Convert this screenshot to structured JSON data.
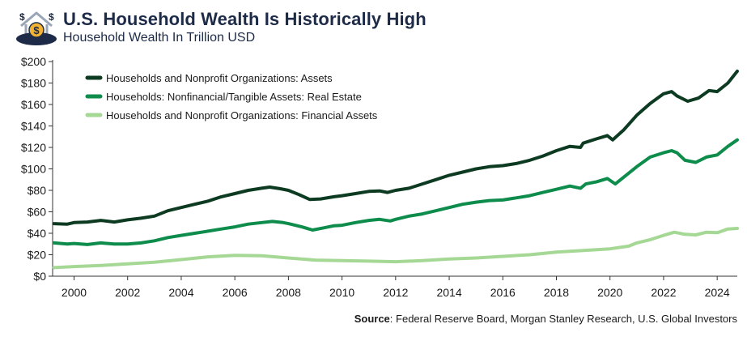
{
  "header": {
    "title": "U.S. Household Wealth Is Historically High",
    "subtitle": "Household Wealth In Trillion USD"
  },
  "logo": {
    "icon": "house-money-icon",
    "glyphs": [
      "$",
      "$",
      "$"
    ]
  },
  "source": {
    "label": "Source",
    "text": ": Federal Reserve Board, Morgan Stanley Research, U.S. Global Investors"
  },
  "chart_data": {
    "type": "line",
    "title": "U.S. Household Wealth Is Historically High",
    "subtitle": "Household Wealth In Trillion USD",
    "xlabel": "",
    "ylabel": "",
    "xlim": [
      1999.2,
      2024.75
    ],
    "ylim": [
      0,
      200
    ],
    "y_ticks": [
      0,
      20,
      40,
      60,
      80,
      100,
      120,
      140,
      160,
      180,
      200
    ],
    "y_tick_labels": [
      "$0",
      "$20",
      "$40",
      "$60",
      "$80",
      "$100",
      "$120",
      "$140",
      "$160",
      "$180",
      "$200"
    ],
    "x_ticks": [
      2000,
      2002,
      2004,
      2006,
      2008,
      2010,
      2012,
      2014,
      2016,
      2018,
      2020,
      2022,
      2024
    ],
    "x_tick_labels": [
      "2000",
      "2002",
      "2004",
      "2006",
      "2008",
      "2010",
      "2012",
      "2014",
      "2016",
      "2018",
      "2020",
      "2022",
      "2024"
    ],
    "grid": false,
    "legend_position": "top-left",
    "series": [
      {
        "name": "Households and Nonprofit Organizations: Assets",
        "color": "#0d3b22",
        "points": [
          [
            1999.25,
            49
          ],
          [
            1999.75,
            48.5
          ],
          [
            2000.0,
            50
          ],
          [
            2000.5,
            50.5
          ],
          [
            2001.0,
            52
          ],
          [
            2001.5,
            50.5
          ],
          [
            2002.0,
            52.5
          ],
          [
            2002.5,
            54
          ],
          [
            2003.0,
            56
          ],
          [
            2003.5,
            61
          ],
          [
            2004.0,
            64
          ],
          [
            2004.5,
            67
          ],
          [
            2005.0,
            70
          ],
          [
            2005.5,
            74
          ],
          [
            2006.0,
            77
          ],
          [
            2006.5,
            80
          ],
          [
            2007.0,
            82
          ],
          [
            2007.3,
            83
          ],
          [
            2007.7,
            81.5
          ],
          [
            2008.0,
            80
          ],
          [
            2008.4,
            76
          ],
          [
            2008.8,
            71.5
          ],
          [
            2009.2,
            72
          ],
          [
            2009.7,
            74
          ],
          [
            2010.0,
            75
          ],
          [
            2010.5,
            77
          ],
          [
            2011.0,
            79
          ],
          [
            2011.4,
            79.5
          ],
          [
            2011.7,
            78
          ],
          [
            2012.0,
            80
          ],
          [
            2012.5,
            82
          ],
          [
            2013.0,
            86
          ],
          [
            2013.5,
            90
          ],
          [
            2014.0,
            94
          ],
          [
            2014.5,
            97
          ],
          [
            2015.0,
            100
          ],
          [
            2015.5,
            102
          ],
          [
            2016.0,
            103
          ],
          [
            2016.5,
            105
          ],
          [
            2017.0,
            108
          ],
          [
            2017.5,
            112
          ],
          [
            2018.0,
            117
          ],
          [
            2018.5,
            121
          ],
          [
            2018.9,
            120
          ],
          [
            2019.0,
            124
          ],
          [
            2019.5,
            128
          ],
          [
            2019.9,
            131
          ],
          [
            2020.1,
            127
          ],
          [
            2020.5,
            136
          ],
          [
            2021.0,
            150
          ],
          [
            2021.5,
            161
          ],
          [
            2022.0,
            170
          ],
          [
            2022.3,
            172
          ],
          [
            2022.5,
            168
          ],
          [
            2022.9,
            163
          ],
          [
            2023.3,
            166
          ],
          [
            2023.7,
            173
          ],
          [
            2024.0,
            172
          ],
          [
            2024.4,
            180
          ],
          [
            2024.75,
            191
          ]
        ]
      },
      {
        "name": "Households: Nonfinancial/Tangible Assets: Real Estate",
        "color": "#0d8c4c",
        "points": [
          [
            1999.25,
            31
          ],
          [
            1999.75,
            30
          ],
          [
            2000.0,
            30.5
          ],
          [
            2000.5,
            29.5
          ],
          [
            2001.0,
            31
          ],
          [
            2001.5,
            30
          ],
          [
            2002.0,
            30
          ],
          [
            2002.5,
            31
          ],
          [
            2003.0,
            33
          ],
          [
            2003.5,
            36
          ],
          [
            2004.0,
            38
          ],
          [
            2004.5,
            40
          ],
          [
            2005.0,
            42
          ],
          [
            2005.5,
            44
          ],
          [
            2006.0,
            46
          ],
          [
            2006.5,
            48.5
          ],
          [
            2007.0,
            50
          ],
          [
            2007.4,
            51
          ],
          [
            2007.8,
            50
          ],
          [
            2008.0,
            49
          ],
          [
            2008.5,
            46
          ],
          [
            2008.9,
            43
          ],
          [
            2009.3,
            45
          ],
          [
            2009.7,
            47
          ],
          [
            2010.0,
            47.5
          ],
          [
            2010.5,
            50
          ],
          [
            2011.0,
            52
          ],
          [
            2011.4,
            53
          ],
          [
            2011.8,
            51.5
          ],
          [
            2012.0,
            53
          ],
          [
            2012.5,
            56
          ],
          [
            2013.0,
            58
          ],
          [
            2013.5,
            61
          ],
          [
            2014.0,
            64
          ],
          [
            2014.5,
            67
          ],
          [
            2015.0,
            69
          ],
          [
            2015.5,
            70.5
          ],
          [
            2016.0,
            71
          ],
          [
            2016.5,
            73
          ],
          [
            2017.0,
            75
          ],
          [
            2017.5,
            78
          ],
          [
            2018.0,
            81
          ],
          [
            2018.5,
            84
          ],
          [
            2018.9,
            82
          ],
          [
            2019.1,
            86
          ],
          [
            2019.5,
            88
          ],
          [
            2019.9,
            91
          ],
          [
            2020.2,
            86
          ],
          [
            2020.5,
            92
          ],
          [
            2021.0,
            102
          ],
          [
            2021.5,
            111
          ],
          [
            2022.0,
            115
          ],
          [
            2022.3,
            117
          ],
          [
            2022.5,
            115
          ],
          [
            2022.8,
            108
          ],
          [
            2023.2,
            106
          ],
          [
            2023.6,
            111
          ],
          [
            2024.0,
            113
          ],
          [
            2024.4,
            121
          ],
          [
            2024.75,
            127
          ]
        ]
      },
      {
        "name": "Households and Nonprofit Organizations: Financial Assets",
        "color": "#a5d895",
        "points": [
          [
            1999.25,
            8
          ],
          [
            2000.0,
            9
          ],
          [
            2001.0,
            10
          ],
          [
            2002.0,
            11.5
          ],
          [
            2003.0,
            13
          ],
          [
            2004.0,
            15.5
          ],
          [
            2005.0,
            18
          ],
          [
            2006.0,
            19.5
          ],
          [
            2007.0,
            19
          ],
          [
            2008.0,
            17
          ],
          [
            2009.0,
            15
          ],
          [
            2010.0,
            14.5
          ],
          [
            2011.0,
            14
          ],
          [
            2012.0,
            13.5
          ],
          [
            2013.0,
            14.5
          ],
          [
            2014.0,
            16
          ],
          [
            2015.0,
            17
          ],
          [
            2016.0,
            18.5
          ],
          [
            2017.0,
            20
          ],
          [
            2018.0,
            22.5
          ],
          [
            2019.0,
            24
          ],
          [
            2020.0,
            25.5
          ],
          [
            2020.7,
            28
          ],
          [
            2021.0,
            31
          ],
          [
            2021.5,
            34
          ],
          [
            2022.0,
            38
          ],
          [
            2022.4,
            41
          ],
          [
            2022.8,
            39
          ],
          [
            2023.2,
            38.5
          ],
          [
            2023.6,
            41
          ],
          [
            2024.0,
            40.5
          ],
          [
            2024.4,
            44
          ],
          [
            2024.75,
            44.5
          ]
        ]
      }
    ]
  }
}
